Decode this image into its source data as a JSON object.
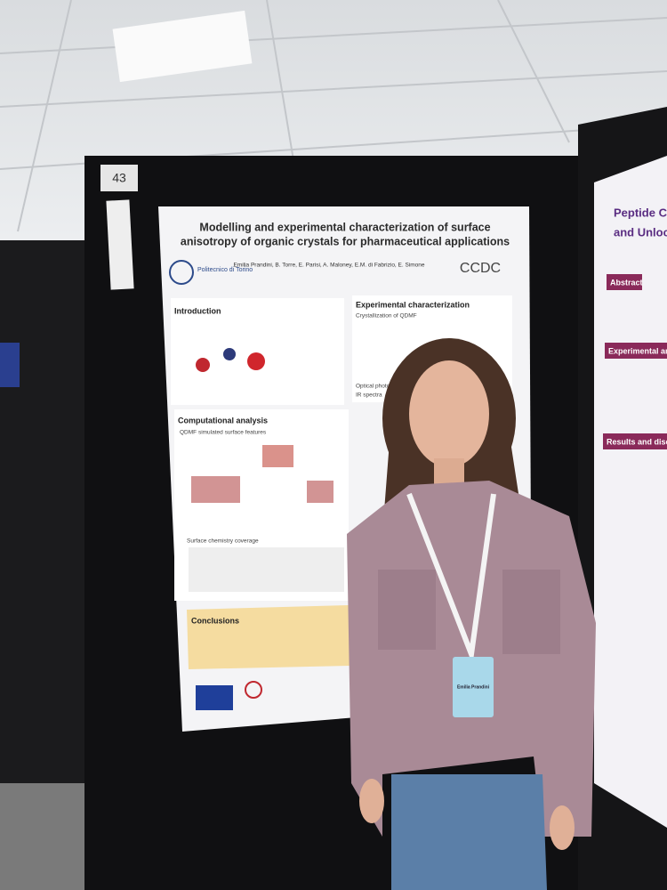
{
  "board_number": "43",
  "poster": {
    "title_lines": [
      "Modelling and experimental characterization of surface",
      "anisotropy of organic crystals for pharmaceutical applications"
    ],
    "authors": "Emilia Prandini, B. Torre, E. Parisi, A. Maloney, E.M. di Fabrizio, E. Simone",
    "institution": "Politecnico di Torino",
    "partner": "CCDC",
    "sections": [
      "Introduction",
      "Experimental characterization",
      "Computational analysis",
      "Conclusions"
    ],
    "subheadings": [
      "Crystallization of QDMF",
      "Optical photo",
      "IR spectra",
      "QDMF simulated surface features",
      "Surface chemistry coverage"
    ]
  },
  "side_poster": {
    "title_lines": [
      "Peptide Cocry",
      "and Unlocking"
    ],
    "sections": [
      "Abstract",
      "Experimental and",
      "Results and discu"
    ]
  },
  "badge": {
    "name": "Emilia Prandini"
  }
}
